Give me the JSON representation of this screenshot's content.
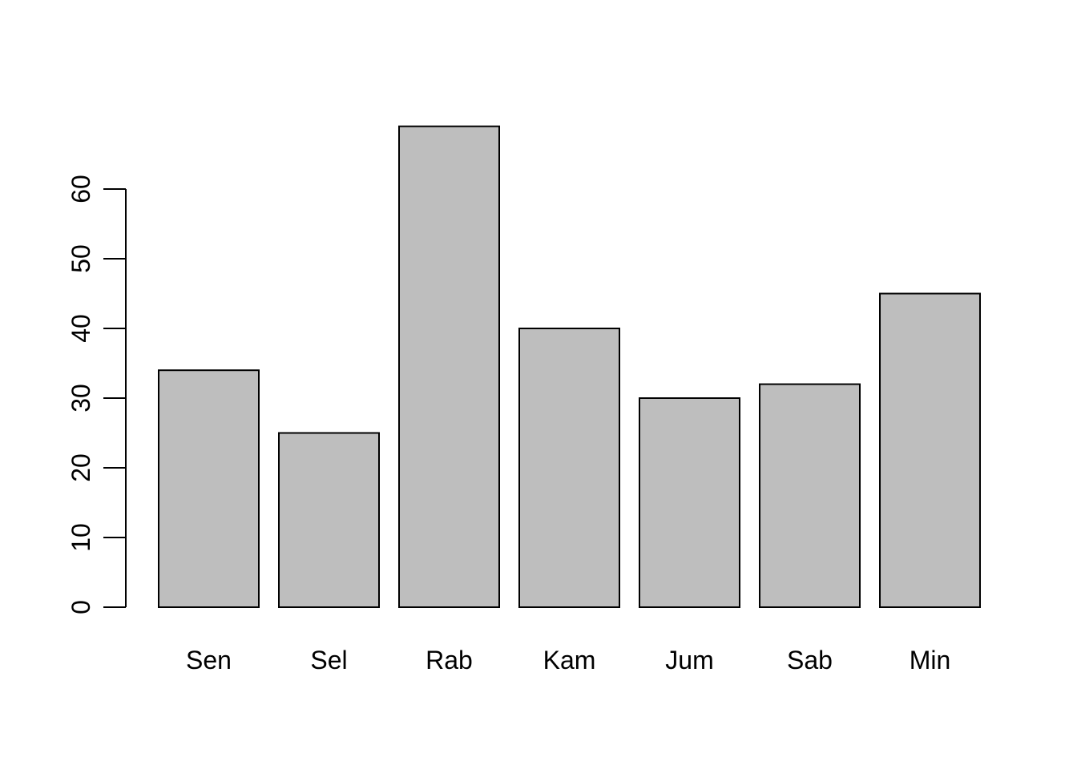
{
  "chart_data": {
    "type": "bar",
    "categories": [
      "Sen",
      "Sel",
      "Rab",
      "Kam",
      "Jum",
      "Sab",
      "Min"
    ],
    "values": [
      34,
      25,
      69,
      40,
      30,
      32,
      45
    ],
    "title": "",
    "xlabel": "",
    "ylabel": "",
    "ylim": [
      0,
      69
    ],
    "yticks": [
      0,
      10,
      20,
      30,
      40,
      50,
      60
    ],
    "ytick_labels": [
      "0",
      "10",
      "20",
      "30",
      "40",
      "50",
      "60"
    ],
    "grid": false,
    "legend": "none",
    "colors": {
      "bar_fill": "#bebebe",
      "bar_stroke": "#000000",
      "axis": "#000000",
      "background": "#ffffff"
    }
  }
}
